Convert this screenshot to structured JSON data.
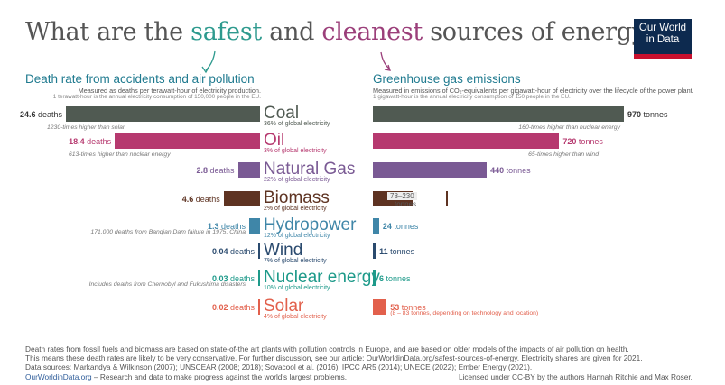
{
  "title": {
    "pre": "What are the ",
    "safe": "safest",
    "mid": " and ",
    "clean": "cleanest",
    "post": " sources of energy?"
  },
  "logo": {
    "line1": "Our World",
    "line2": "in Data"
  },
  "left": {
    "title": "Death rate from accidents and air pollution",
    "subtitle": "Measured as deaths per terawatt-hour of electricity production.",
    "ref": "1 terawatt-hour is the annual electricity consumption of 150,000 people in the EU."
  },
  "right": {
    "title": "Greenhouse gas emissions",
    "subtitle": "Measured in emissions of CO₂-equivalents per gigawatt-hour of electricity over the lifecycle of the power plant.",
    "ref": "1 gigawatt-hour is the annual electricity consumption of 150 people in the EU."
  },
  "colors": {
    "Coal": "#505a52",
    "Oil": "#b6396f",
    "Natural Gas": "#7a5a94",
    "Biomass": "#5e3322",
    "Hydropower": "#3f86a8",
    "Wind": "#2a4a6e",
    "Nuclear energy": "#1e9a8a",
    "Solar": "#e2604c"
  },
  "chart_data": [
    {
      "type": "bar",
      "title": "Death rate from accidents and air pollution",
      "categories": [
        "Coal",
        "Oil",
        "Natural Gas",
        "Biomass",
        "Hydropower",
        "Wind",
        "Nuclear energy",
        "Solar"
      ],
      "values": [
        24.6,
        18.4,
        2.8,
        4.6,
        1.3,
        0.04,
        0.03,
        0.02
      ],
      "unit": "deaths",
      "notes": [
        "1230-times higher than solar",
        "613-times higher than nuclear energy",
        "",
        "",
        "171,000 deaths from Banqian Dam failure in 1975, China",
        "",
        "Includes deaths from Chernobyl and Fukushima disasters",
        ""
      ]
    },
    {
      "type": "bar",
      "title": "Greenhouse gas emissions",
      "categories": [
        "Coal",
        "Oil",
        "Natural Gas",
        "Biomass",
        "Hydropower",
        "Wind",
        "Nuclear energy",
        "Solar"
      ],
      "values": [
        970,
        720,
        440,
        154,
        24,
        11,
        6,
        53
      ],
      "range_labels": [
        "",
        "",
        "",
        "78–230",
        "",
        "",
        "",
        ""
      ],
      "range_units": [
        "",
        "",
        "",
        "tonnes",
        "",
        "",
        "",
        ""
      ],
      "labels": [
        "970",
        "720",
        "440",
        "",
        "24",
        "11",
        "6",
        "53"
      ],
      "unit": "tonnes",
      "notes": [
        "160-times higher than nuclear energy",
        "65-times higher than wind",
        "",
        "",
        "",
        "",
        "",
        "(8 – 83 tonnes, depending on technology and location)"
      ]
    }
  ],
  "shares": [
    "36% of global electricity",
    "3% of global electricity",
    "22% of global electricity",
    "2% of global electricity",
    "12% of global electricity",
    "7% of global electricity",
    "10% of global electricity",
    "4% of global electricity"
  ],
  "footer": {
    "line1": "Death rates from fossil fuels and biomass are based on state-of-the art plants with pollution controls in Europe, and are based on older models of the impacts of air pollution on health.",
    "line2": "This means these death rates are likely to be very conservative. For further discussion, see our article: OurWorldinData.org/safest-sources-of-energy. Electricity shares are given for 2021.",
    "line3": "Data sources: Markandya & Wilkinson (2007); UNSCEAR (2008; 2018); Sovacool et al. (2016); IPCC AR5 (2014); UNECE (2022); Ember Energy (2021).",
    "link": "OurWorldinData.org",
    "tagline": " – Research and data to make progress against the world's largest problems.",
    "license": "Licensed under CC-BY by the authors Hannah Ritchie and Max Roser."
  }
}
